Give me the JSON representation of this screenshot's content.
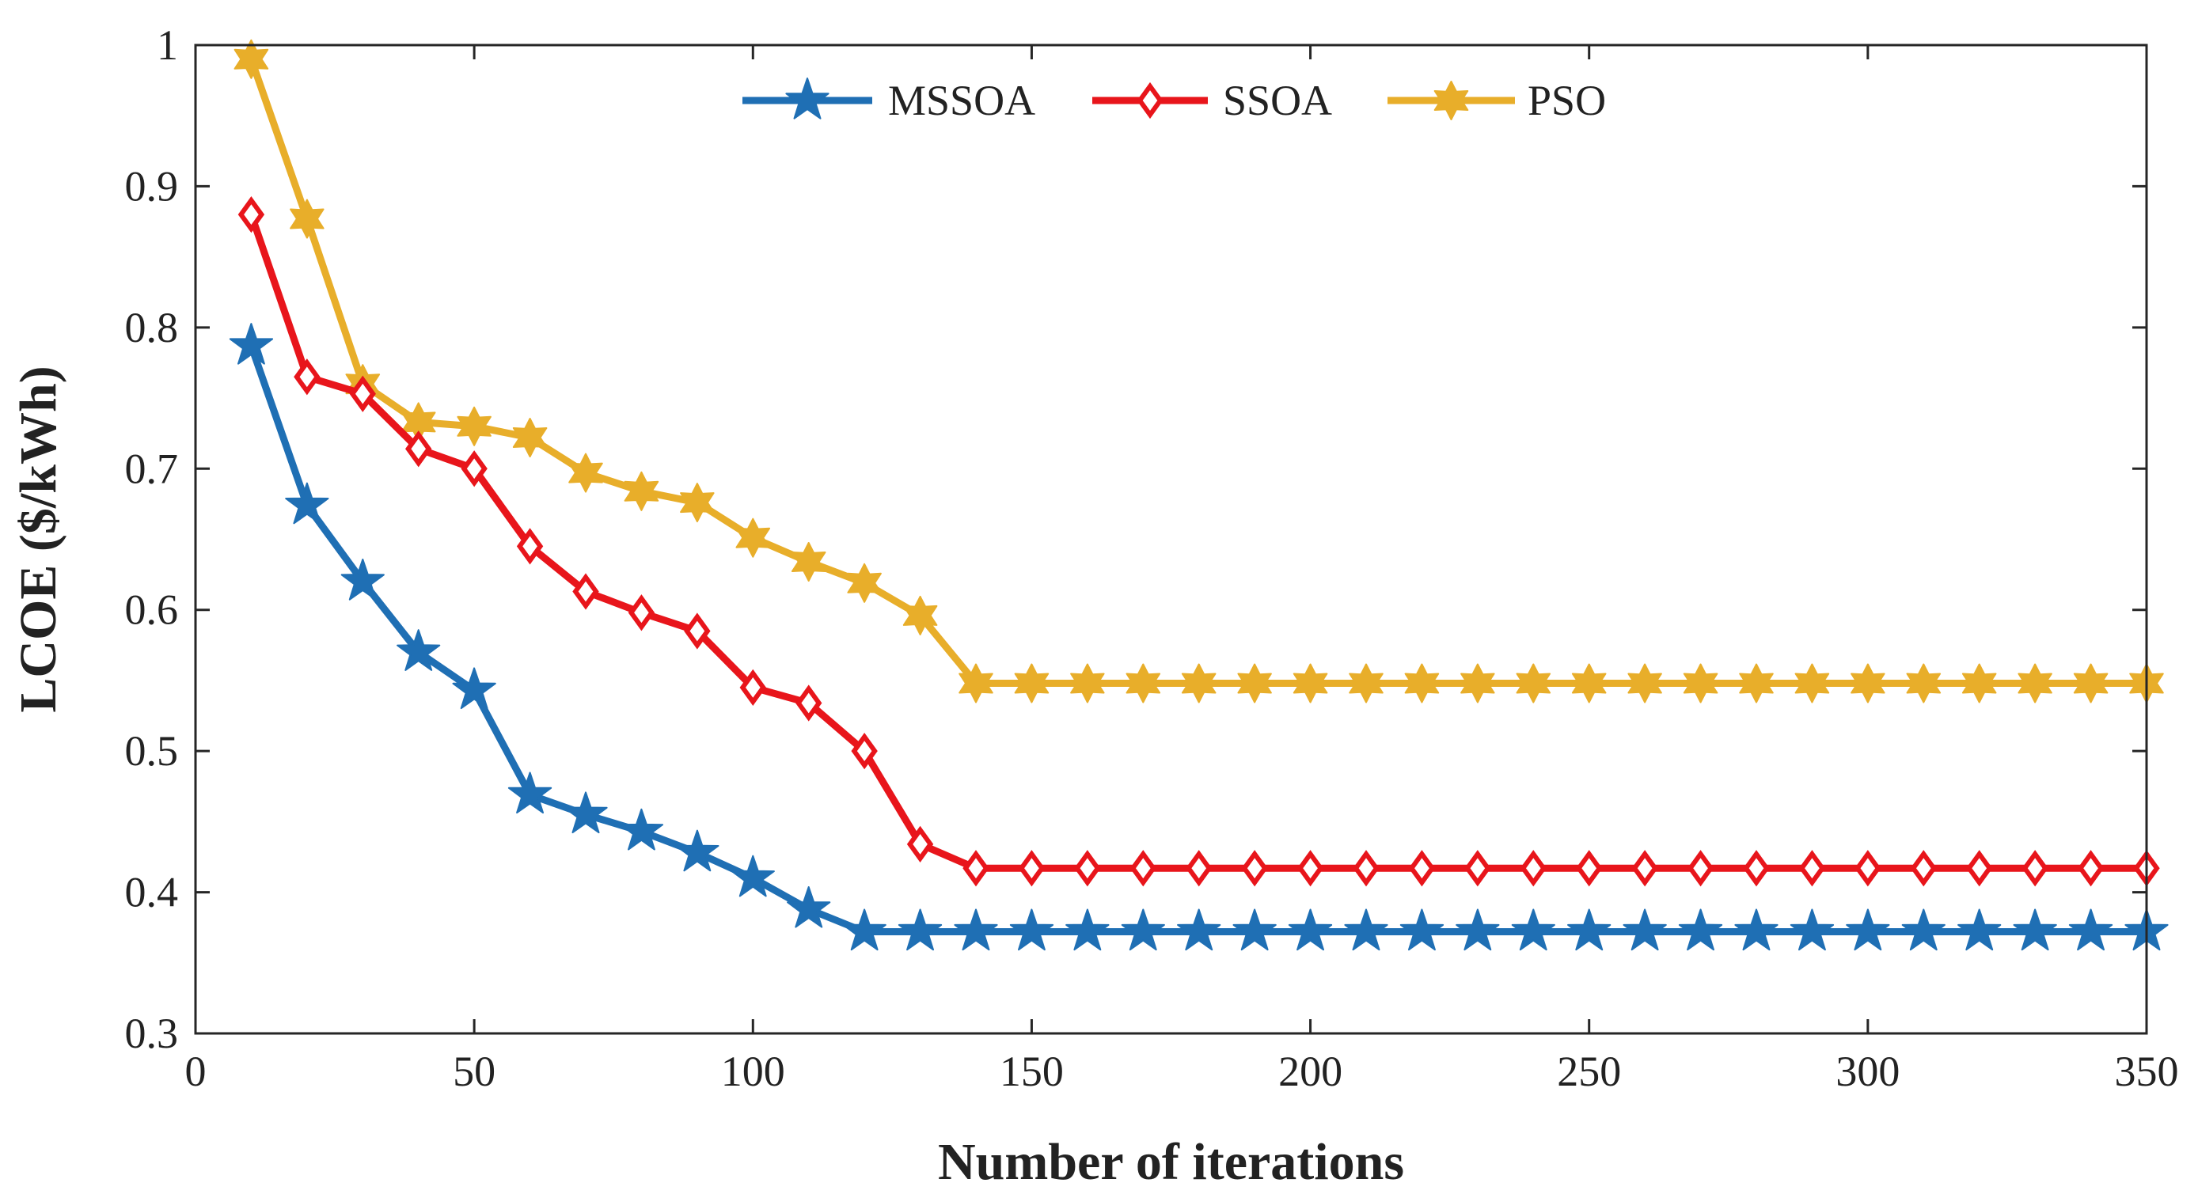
{
  "chart_data": {
    "type": "line",
    "title": "",
    "xlabel": "Number of iterations",
    "ylabel": "LCOE ($/kWh)",
    "xlim": [
      0,
      350
    ],
    "ylim": [
      0.3,
      1.0
    ],
    "xticks": [
      0,
      50,
      100,
      150,
      200,
      250,
      300,
      350
    ],
    "yticks": [
      0.3,
      0.4,
      0.5,
      0.6,
      0.7,
      0.8,
      0.9,
      1.0
    ],
    "xtick_labels": [
      "0",
      "50",
      "100",
      "150",
      "200",
      "250",
      "300",
      "350"
    ],
    "ytick_labels": [
      "0.3",
      "0.4",
      "0.5",
      "0.6",
      "0.7",
      "0.8",
      "0.9",
      "1"
    ],
    "grid": false,
    "legend_position": "top-center",
    "x": [
      10,
      20,
      30,
      40,
      50,
      60,
      70,
      80,
      90,
      100,
      110,
      120,
      130,
      140,
      150,
      160,
      170,
      180,
      190,
      200,
      210,
      220,
      230,
      240,
      250,
      260,
      270,
      280,
      290,
      300,
      310,
      320,
      330,
      340,
      350
    ],
    "series": [
      {
        "name": "MSSOA",
        "color": "#1f6fb4",
        "marker": "star",
        "values": [
          0.787,
          0.674,
          0.62,
          0.57,
          0.543,
          0.469,
          0.455,
          0.443,
          0.428,
          0.41,
          0.388,
          0.372,
          0.372,
          0.372,
          0.372,
          0.372,
          0.372,
          0.372,
          0.372,
          0.372,
          0.372,
          0.372,
          0.372,
          0.372,
          0.372,
          0.372,
          0.372,
          0.372,
          0.372,
          0.372,
          0.372,
          0.372,
          0.372,
          0.372,
          0.372
        ]
      },
      {
        "name": "SSOA",
        "color": "#e8151b",
        "marker": "diamond",
        "values": [
          0.88,
          0.765,
          0.753,
          0.714,
          0.7,
          0.645,
          0.613,
          0.598,
          0.585,
          0.545,
          0.534,
          0.5,
          0.434,
          0.417,
          0.417,
          0.417,
          0.417,
          0.417,
          0.417,
          0.417,
          0.417,
          0.417,
          0.417,
          0.417,
          0.417,
          0.417,
          0.417,
          0.417,
          0.417,
          0.417,
          0.417,
          0.417,
          0.417,
          0.417,
          0.417
        ]
      },
      {
        "name": "PSO",
        "color": "#e8ae2a",
        "marker": "hexagram",
        "values": [
          0.99,
          0.877,
          0.76,
          0.733,
          0.73,
          0.722,
          0.697,
          0.684,
          0.676,
          0.651,
          0.634,
          0.619,
          0.596,
          0.548,
          0.548,
          0.548,
          0.548,
          0.548,
          0.548,
          0.548,
          0.548,
          0.548,
          0.548,
          0.548,
          0.548,
          0.548,
          0.548,
          0.548,
          0.548,
          0.548,
          0.548,
          0.548,
          0.548,
          0.548,
          0.548
        ]
      }
    ]
  }
}
